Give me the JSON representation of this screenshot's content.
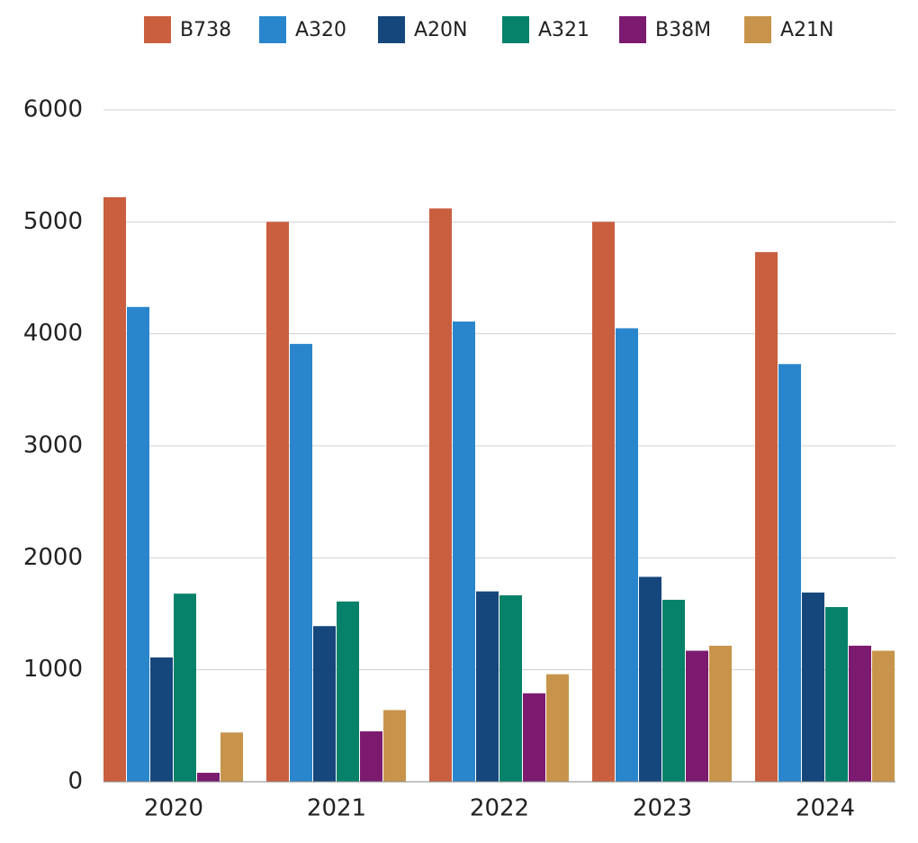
{
  "chart_data": {
    "type": "bar",
    "categories": [
      "2020",
      "2021",
      "2022",
      "2023",
      "2024"
    ],
    "series": [
      {
        "name": "B738",
        "color": "#c95f3f",
        "values": [
          5220,
          5000,
          5120,
          5000,
          4730
        ]
      },
      {
        "name": "A320",
        "color": "#2a86cc",
        "values": [
          4240,
          3910,
          4110,
          4050,
          3730
        ]
      },
      {
        "name": "A20N",
        "color": "#16477c",
        "values": [
          1110,
          1390,
          1700,
          1830,
          1690
        ]
      },
      {
        "name": "A321",
        "color": "#07826a",
        "values": [
          1680,
          1610,
          1665,
          1625,
          1560
        ]
      },
      {
        "name": "B38M",
        "color": "#7c1a6f",
        "values": [
          80,
          450,
          790,
          1170,
          1215
        ]
      },
      {
        "name": "A21N",
        "color": "#c8944c",
        "values": [
          440,
          640,
          960,
          1215,
          1170
        ]
      }
    ],
    "ylim": [
      0,
      6000
    ],
    "yticks": [
      0,
      1000,
      2000,
      3000,
      4000,
      5000,
      6000
    ],
    "grid": true,
    "legend": "top"
  }
}
